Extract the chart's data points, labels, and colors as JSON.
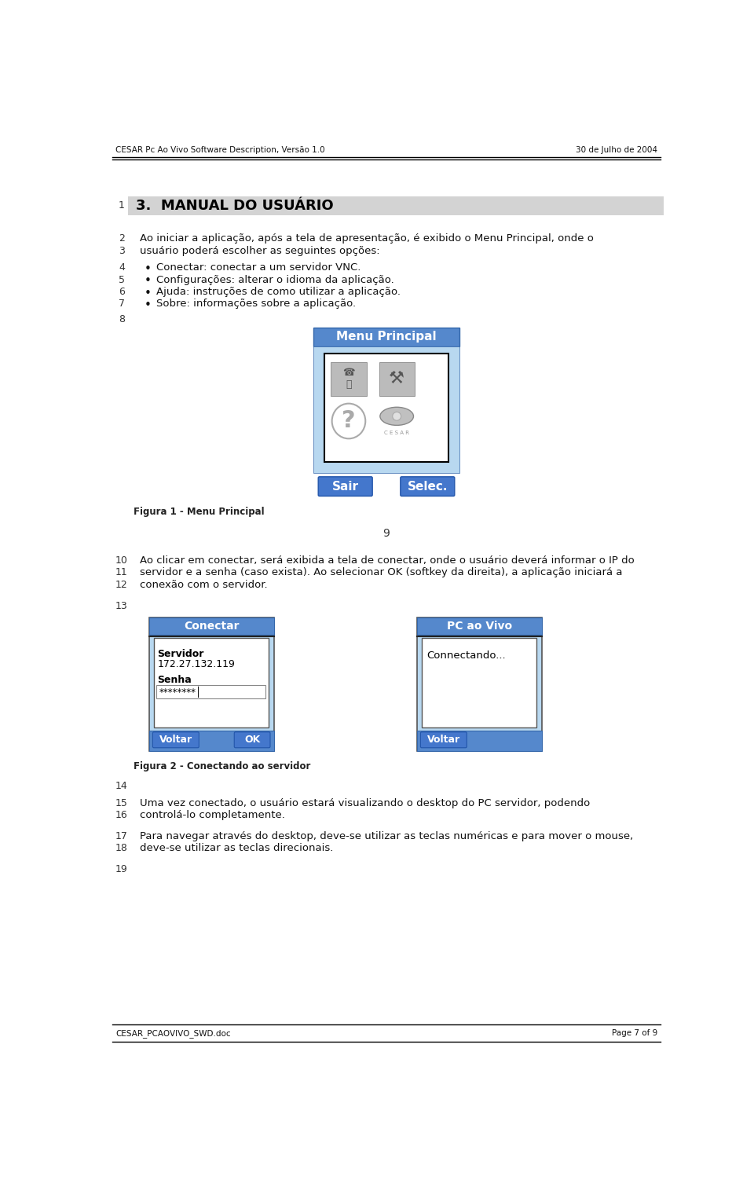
{
  "header_left": "CESAR Pc Ao Vivo Software Description, Versão 1.0",
  "header_right": "30 de Julho de 2004",
  "footer_left": "CESAR_PCAOVIVO_SWD.doc",
  "footer_right": "Page 7 of 9",
  "section_title": "3.  MANUAL DO USUÁRIO",
  "body_lines": {
    "2": "Ao iniciar a aplicação, após a tela de apresentação, é exibido o Menu Principal, onde o",
    "3": "usuário poderá escolher as seguintes opções:",
    "4_bullet": "Conectar: conectar a um servidor VNC.",
    "5_bullet": "Configurações: alterar o idioma da aplicação.",
    "6_bullet": "Ajuda: instruções de como utilizar a aplicação.",
    "7_bullet": "Sobre: informações sobre a aplicação.",
    "fig1_caption": "Figura 1 - Menu Principal",
    "10": "Ao clicar em conectar, será exibida a tela de conectar, onde o usuário deverá informar o IP do",
    "11": "servidor e a senha (caso exista). Ao selecionar OK (softkey da direita), a aplicação iniciará a",
    "12": "conexão com o servidor.",
    "fig2_caption": "Figura 2 - Conectando ao servidor",
    "15": "Uma vez conectado, o usuário estará visualizando o desktop do PC servidor, podendo",
    "16": "controlá-lo completamente.",
    "17": "Para navegar através do desktop, deve-se utilizar as teclas numéricas e para mover o mouse,",
    "18": "deve-se utilizar as teclas direcionais."
  },
  "bg_color": "#ffffff",
  "header_color": "#5588cc",
  "btn_color": "#4477bb",
  "title_bar_color": "#5599dd"
}
